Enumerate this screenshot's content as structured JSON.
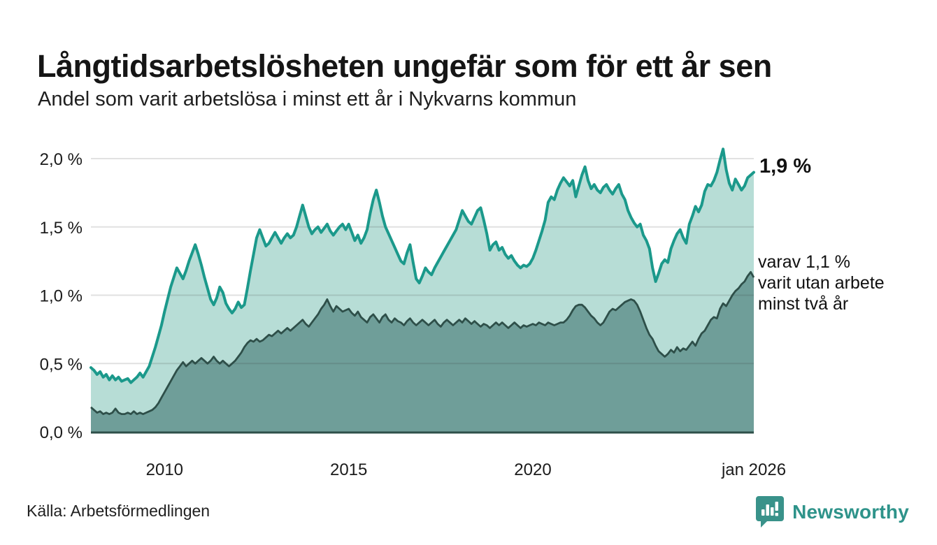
{
  "header": {
    "title": "Långtidsarbetslösheten ungefär som för ett år sen",
    "subtitle": "Andel som varit arbetslösa i minst ett år i Nykvarns kommun"
  },
  "annotations": {
    "latest_total": "1,9 %",
    "secondary_line1": "varav 1,1 %",
    "secondary_line2": "varit utan arbete",
    "secondary_line3": "minst två år"
  },
  "footer": {
    "source": "Källa: Arbetsförmedlingen",
    "brand_name": "Newsworthy"
  },
  "colors": {
    "line_1yr": "#1b998b",
    "fill_1yr": "#b7ddd6",
    "line_2yr": "#2e4f49",
    "fill_2yr": "#6f9e99",
    "gridline": "rgba(40,40,40,0.14)",
    "baseline": "#2e4f49",
    "brand_teal": "#39928a",
    "text": "#1b1b1b"
  },
  "chart_data": {
    "type": "area",
    "title": "Långtidsarbetslösheten ungefär som för ett år sen",
    "subtitle": "Andel som varit arbetslösa i minst ett år i Nykvarns kommun",
    "unit": "%",
    "x_start": "jan 2008",
    "x_end": "jan 2026",
    "interval": "monthly",
    "ylim": [
      0,
      2.0
    ],
    "grid": "horizontal",
    "y_ticks": [
      {
        "value": 0.0,
        "label": "0,0 %"
      },
      {
        "value": 0.5,
        "label": "0,5 %"
      },
      {
        "value": 1.0,
        "label": "1,0 %"
      },
      {
        "value": 1.5,
        "label": "1,5 %"
      },
      {
        "value": 2.0,
        "label": "2,0 %"
      }
    ],
    "x_ticks": [
      {
        "month_index": 24,
        "label": "2010"
      },
      {
        "month_index": 84,
        "label": "2015"
      },
      {
        "month_index": 144,
        "label": "2020"
      },
      {
        "month_index": 216,
        "label": "jan 2026"
      }
    ],
    "latest": {
      "unemployed_min_1yr": "1,9 %",
      "unemployed_min_2yr": "1,1 %"
    },
    "series": [
      {
        "name": "Arbetslösa minst ett år",
        "values": [
          0.47,
          0.45,
          0.42,
          0.44,
          0.4,
          0.42,
          0.38,
          0.41,
          0.38,
          0.4,
          0.37,
          0.38,
          0.39,
          0.36,
          0.38,
          0.4,
          0.43,
          0.4,
          0.44,
          0.48,
          0.55,
          0.62,
          0.7,
          0.78,
          0.88,
          0.97,
          1.06,
          1.13,
          1.2,
          1.16,
          1.12,
          1.18,
          1.25,
          1.31,
          1.37,
          1.3,
          1.22,
          1.13,
          1.05,
          0.97,
          0.93,
          0.98,
          1.06,
          1.02,
          0.94,
          0.9,
          0.87,
          0.9,
          0.95,
          0.91,
          0.93,
          1.05,
          1.18,
          1.3,
          1.42,
          1.48,
          1.42,
          1.36,
          1.38,
          1.42,
          1.46,
          1.42,
          1.38,
          1.42,
          1.45,
          1.42,
          1.44,
          1.5,
          1.58,
          1.66,
          1.58,
          1.5,
          1.45,
          1.48,
          1.5,
          1.46,
          1.49,
          1.52,
          1.47,
          1.44,
          1.47,
          1.5,
          1.52,
          1.48,
          1.52,
          1.46,
          1.4,
          1.44,
          1.38,
          1.42,
          1.48,
          1.6,
          1.7,
          1.77,
          1.68,
          1.58,
          1.5,
          1.45,
          1.4,
          1.35,
          1.3,
          1.25,
          1.23,
          1.31,
          1.37,
          1.24,
          1.12,
          1.09,
          1.14,
          1.2,
          1.17,
          1.15,
          1.2,
          1.24,
          1.28,
          1.32,
          1.36,
          1.4,
          1.44,
          1.48,
          1.55,
          1.62,
          1.58,
          1.54,
          1.52,
          1.57,
          1.62,
          1.64,
          1.55,
          1.45,
          1.33,
          1.37,
          1.39,
          1.33,
          1.35,
          1.3,
          1.27,
          1.29,
          1.25,
          1.22,
          1.2,
          1.22,
          1.21,
          1.23,
          1.27,
          1.33,
          1.4,
          1.47,
          1.55,
          1.68,
          1.72,
          1.7,
          1.77,
          1.82,
          1.86,
          1.83,
          1.8,
          1.84,
          1.72,
          1.8,
          1.88,
          1.94,
          1.84,
          1.78,
          1.81,
          1.77,
          1.75,
          1.79,
          1.81,
          1.77,
          1.74,
          1.78,
          1.81,
          1.74,
          1.7,
          1.62,
          1.57,
          1.53,
          1.5,
          1.52,
          1.44,
          1.4,
          1.34,
          1.2,
          1.1,
          1.16,
          1.23,
          1.26,
          1.24,
          1.34,
          1.4,
          1.45,
          1.48,
          1.42,
          1.38,
          1.52,
          1.58,
          1.65,
          1.61,
          1.66,
          1.76,
          1.81,
          1.8,
          1.84,
          1.9,
          1.99,
          2.07,
          1.92,
          1.82,
          1.77,
          1.85,
          1.81,
          1.77,
          1.8,
          1.86,
          1.88,
          1.9
        ]
      },
      {
        "name": "varav utan arbete minst två år",
        "values": [
          0.18,
          0.16,
          0.14,
          0.15,
          0.13,
          0.14,
          0.13,
          0.14,
          0.17,
          0.14,
          0.13,
          0.13,
          0.14,
          0.13,
          0.15,
          0.13,
          0.14,
          0.13,
          0.14,
          0.15,
          0.16,
          0.18,
          0.21,
          0.25,
          0.29,
          0.33,
          0.37,
          0.41,
          0.45,
          0.48,
          0.51,
          0.48,
          0.5,
          0.52,
          0.5,
          0.52,
          0.54,
          0.52,
          0.5,
          0.52,
          0.55,
          0.52,
          0.5,
          0.52,
          0.5,
          0.48,
          0.5,
          0.52,
          0.55,
          0.58,
          0.62,
          0.65,
          0.67,
          0.66,
          0.68,
          0.66,
          0.67,
          0.69,
          0.71,
          0.7,
          0.72,
          0.74,
          0.72,
          0.74,
          0.76,
          0.74,
          0.76,
          0.78,
          0.8,
          0.82,
          0.79,
          0.77,
          0.8,
          0.83,
          0.86,
          0.9,
          0.93,
          0.97,
          0.92,
          0.88,
          0.92,
          0.9,
          0.88,
          0.89,
          0.9,
          0.87,
          0.85,
          0.88,
          0.84,
          0.82,
          0.8,
          0.84,
          0.86,
          0.83,
          0.8,
          0.84,
          0.86,
          0.82,
          0.8,
          0.83,
          0.81,
          0.8,
          0.78,
          0.81,
          0.83,
          0.8,
          0.78,
          0.8,
          0.82,
          0.8,
          0.78,
          0.8,
          0.82,
          0.79,
          0.77,
          0.8,
          0.82,
          0.8,
          0.78,
          0.8,
          0.82,
          0.8,
          0.83,
          0.81,
          0.79,
          0.81,
          0.79,
          0.77,
          0.79,
          0.78,
          0.76,
          0.78,
          0.8,
          0.78,
          0.8,
          0.78,
          0.76,
          0.78,
          0.8,
          0.78,
          0.76,
          0.78,
          0.77,
          0.78,
          0.79,
          0.78,
          0.8,
          0.79,
          0.78,
          0.8,
          0.79,
          0.78,
          0.79,
          0.8,
          0.8,
          0.82,
          0.85,
          0.89,
          0.92,
          0.93,
          0.93,
          0.91,
          0.88,
          0.85,
          0.83,
          0.8,
          0.78,
          0.8,
          0.84,
          0.88,
          0.9,
          0.89,
          0.91,
          0.93,
          0.95,
          0.96,
          0.97,
          0.96,
          0.93,
          0.88,
          0.82,
          0.76,
          0.71,
          0.68,
          0.63,
          0.59,
          0.57,
          0.55,
          0.57,
          0.6,
          0.58,
          0.62,
          0.59,
          0.61,
          0.6,
          0.63,
          0.66,
          0.63,
          0.68,
          0.72,
          0.74,
          0.78,
          0.82,
          0.84,
          0.83,
          0.9,
          0.94,
          0.92,
          0.96,
          1.0,
          1.03,
          1.05,
          1.08,
          1.1,
          1.14,
          1.17,
          1.13
        ]
      }
    ]
  }
}
